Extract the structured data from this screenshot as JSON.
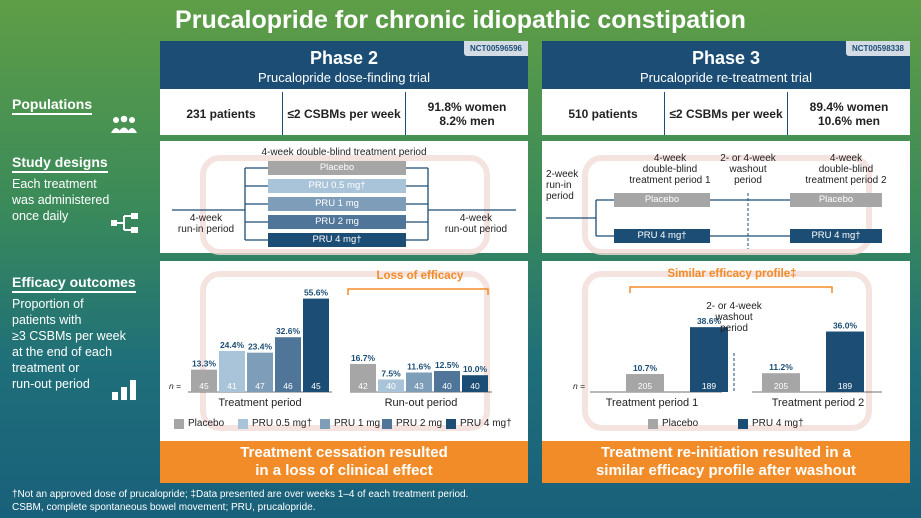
{
  "title": "Prucalopride for chronic idiopathic constipation",
  "left": {
    "populations": "Populations",
    "study_designs": "Study designs",
    "design_note": [
      "Each treatment",
      "was administered",
      "once daily"
    ],
    "efficacy_outcomes": "Efficacy outcomes",
    "efficacy_note": [
      "Proportion of",
      "patients with",
      "≥3 CSBMs per week",
      "at the end of each",
      "treatment or",
      "run-out period"
    ]
  },
  "phase2": {
    "title": "Phase 2",
    "subtitle": "Prucalopride dose-finding trial",
    "nct": "NCT00596596",
    "pop": [
      "231 patients",
      "≤2 CSBMs per week",
      "91.8% women",
      "8.2% men"
    ],
    "design": {
      "header": "4-week double-blind treatment period",
      "arms": [
        "Placebo",
        "PRU 0.5 mg†",
        "PRU 1 mg",
        "PRU 2 mg",
        "PRU 4 mg†"
      ],
      "runin": [
        "4-week",
        "run-in period"
      ],
      "runout": [
        "4-week",
        "run-out period"
      ]
    },
    "loss_label": "Loss of efficacy",
    "n_label": "n =",
    "group_labels": [
      "Treatment period",
      "Run-out period"
    ],
    "legend": [
      "Placebo",
      "PRU 0.5 mg†",
      "PRU 1 mg",
      "PRU 2 mg",
      "PRU 4 mg†"
    ],
    "banner": [
      "Treatment cessation resulted",
      "in a loss of clinical effect"
    ]
  },
  "phase3": {
    "title": "Phase 3",
    "subtitle": "Prucalopride re-treatment trial",
    "nct": "NCT00598338",
    "pop": [
      "510 patients",
      "≤2 CSBMs per week",
      "89.4% women",
      "10.6% men"
    ],
    "design": {
      "runin": [
        "2-week",
        "run-in",
        "period"
      ],
      "tp1": [
        "4-week",
        "double-blind",
        "treatment period 1"
      ],
      "washout": [
        "2- or 4-week",
        "washout",
        "period"
      ],
      "tp2": [
        "4-week",
        "double-blind",
        "treatment period 2"
      ],
      "arms": [
        "Placebo",
        "PRU 4 mg†",
        "Placebo",
        "PRU 4 mg†"
      ]
    },
    "similar_label": "Similar efficacy profile‡",
    "washout_label": [
      "2- or 4-week",
      "washout",
      "period"
    ],
    "n_label": "n =",
    "group_labels": [
      "Treatment period 1",
      "Treatment period 2"
    ],
    "legend": [
      "Placebo",
      "PRU 4 mg†"
    ],
    "banner": [
      "Treatment re-initiation resulted in a",
      "similar efficacy profile after washout"
    ]
  },
  "colors": {
    "placebo": "#a6a6a6",
    "pru05": "#a9c4d9",
    "pru1": "#7d9db8",
    "pru2": "#4f7599",
    "pru4": "#1c4e75",
    "accent": "#f28c28"
  },
  "chart_data": [
    {
      "type": "bar",
      "categories": [
        "Treatment period",
        "Run-out period"
      ],
      "series": [
        {
          "name": "Placebo",
          "values": [
            13.3,
            16.7
          ],
          "n": [
            45,
            42
          ]
        },
        {
          "name": "PRU 0.5 mg†",
          "values": [
            24.4,
            7.5
          ],
          "n": [
            41,
            40
          ]
        },
        {
          "name": "PRU 1 mg",
          "values": [
            23.4,
            11.6
          ],
          "n": [
            47,
            43
          ]
        },
        {
          "name": "PRU 2 mg",
          "values": [
            32.6,
            12.5
          ],
          "n": [
            46,
            40
          ]
        },
        {
          "name": "PRU 4 mg†",
          "values": [
            55.6,
            10.0
          ],
          "n": [
            45,
            40
          ]
        }
      ]
    },
    {
      "type": "bar",
      "categories": [
        "Treatment period 1",
        "Treatment period 2"
      ],
      "series": [
        {
          "name": "Placebo",
          "values": [
            10.7,
            11.2
          ],
          "n": [
            205,
            205
          ]
        },
        {
          "name": "PRU 4 mg†",
          "values": [
            38.6,
            36.0
          ],
          "n": [
            189,
            189
          ]
        }
      ]
    }
  ],
  "footnotes": [
    "†Not an approved dose of prucalopride; ‡Data presented are over weeks 1–4 of each treatment period.",
    "CSBM, complete spontaneous bowel movement; PRU, prucalopride."
  ]
}
